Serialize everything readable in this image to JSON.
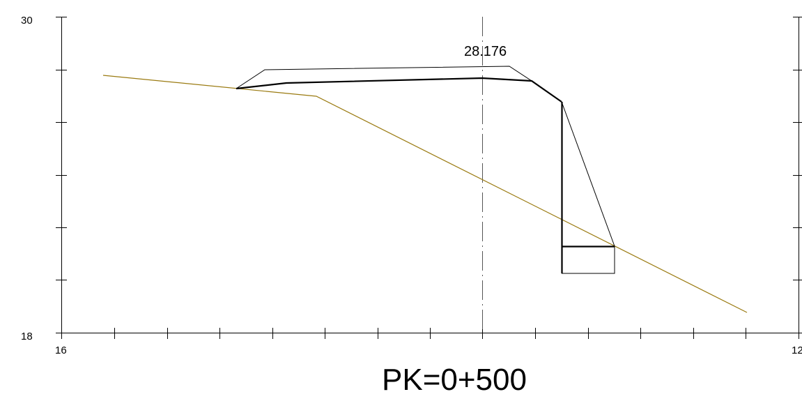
{
  "station": {
    "label": "PK=0+500"
  },
  "axes": {
    "y_top_label": "30",
    "y_bottom_label": "18",
    "x_left_label": "16",
    "x_right_label": "12"
  },
  "annotations": {
    "axis_elevation_label": "28.176"
  },
  "colors": {
    "terrain": "#9a7a10",
    "design": "#000000",
    "frame": "#000000",
    "axis_line": "#555555"
  }
}
